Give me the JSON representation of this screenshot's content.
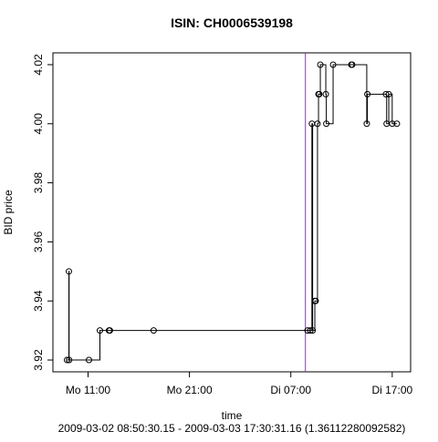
{
  "chart_data": {
    "type": "line",
    "step": true,
    "markers": "circle",
    "title": "ISIN: CH0006539198",
    "xlabel": "time",
    "subtitle": "2009-03-02 08:50:30.15 - 2009-03-03 17:30:31.16 (1.36112280092582)",
    "ylabel": "BID price",
    "x": [
      8.93,
      9.11,
      9.13,
      11.09,
      12.17,
      13.07,
      13.15,
      17.47,
      32.65,
      32.92,
      33.08,
      33.15,
      33.37,
      33.45,
      33.63,
      33.73,
      33.8,
      33.91,
      34.45,
      34.5,
      35.17,
      36.97,
      37.05,
      38.49,
      38.55,
      40.38,
      40.45,
      40.66,
      41.0,
      41.46
    ],
    "series": [
      {
        "name": "BID",
        "color": "#000000",
        "values": [
          3.92,
          3.95,
          3.92,
          3.92,
          3.93,
          3.93,
          3.93,
          3.93,
          3.93,
          3.93,
          4.0,
          3.93,
          3.94,
          3.94,
          4.0,
          4.01,
          4.01,
          4.02,
          4.01,
          4.0,
          4.02,
          4.02,
          4.02,
          4.0,
          4.01,
          4.01,
          4.0,
          4.01,
          4.0,
          4.0
        ]
      }
    ],
    "xlim": [
      7.535,
      42.816
    ],
    "xticks": [
      {
        "value": 11,
        "label": "Mo 11:00"
      },
      {
        "value": 21,
        "label": "Mo 21:00"
      },
      {
        "value": 31,
        "label": "Di 07:00"
      },
      {
        "value": 41,
        "label": "Di 17:00"
      }
    ],
    "ylim": [
      3.916,
      4.024
    ],
    "yticks": [
      3.92,
      3.94,
      3.96,
      3.98,
      {
        "value": 4,
        "label": "4.00"
      },
      4.02
    ],
    "vline": {
      "x": 32.44,
      "color": "#a020f0"
    }
  }
}
